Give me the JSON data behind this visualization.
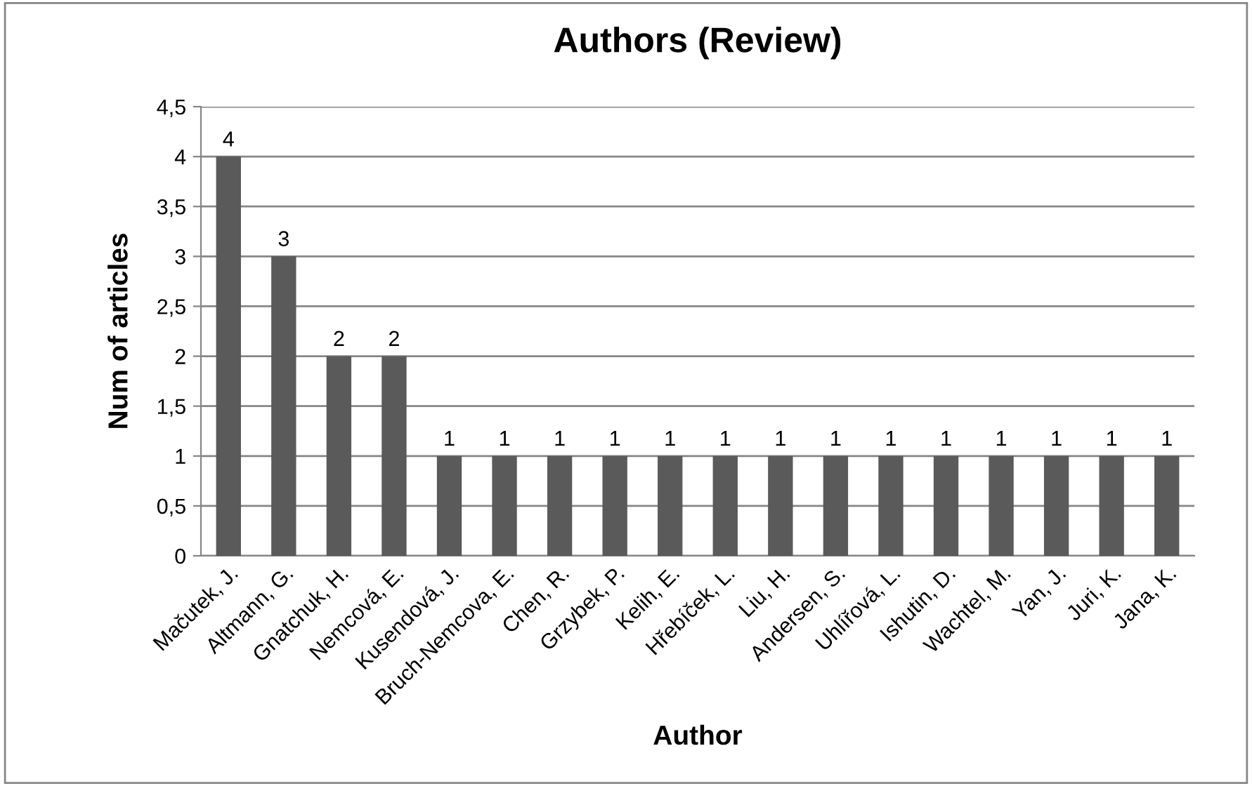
{
  "chart_data": {
    "type": "bar",
    "title": "Authors (Review)",
    "xlabel": "Author",
    "ylabel": "Num of articles",
    "categories": [
      "Mačutek, J.",
      "Altmann, G.",
      "Gnatchuk, H.",
      "Nemcová, E.",
      "Kusendová, J.",
      "Bruch-Nemcova, E.",
      "Chen, R.",
      "Grzybek, P.",
      "Kelih, E.",
      "Hřebíček, L.",
      "Liu, H.",
      "Andersen, S.",
      "Uhlířová, L.",
      "Ishutin, D.",
      "Wachtel, M.",
      "Yan, J.",
      "Juri, K.",
      "Jana, K."
    ],
    "values": [
      4,
      3,
      2,
      2,
      1,
      1,
      1,
      1,
      1,
      1,
      1,
      1,
      1,
      1,
      1,
      1,
      1,
      1
    ],
    "color": "#5a5a5a",
    "data_labels": true,
    "grid": "y",
    "legend": false,
    "ylim": [
      0,
      4.5
    ],
    "yticks": [
      0,
      {
        "value": 0.5,
        "label": "0,5"
      },
      1,
      {
        "value": 1.5,
        "label": "1,5"
      },
      2,
      {
        "value": 2.5,
        "label": "2,5"
      },
      3,
      {
        "value": 3.5,
        "label": "3,5"
      },
      4,
      {
        "value": 4.5,
        "label": "4,5"
      }
    ]
  }
}
